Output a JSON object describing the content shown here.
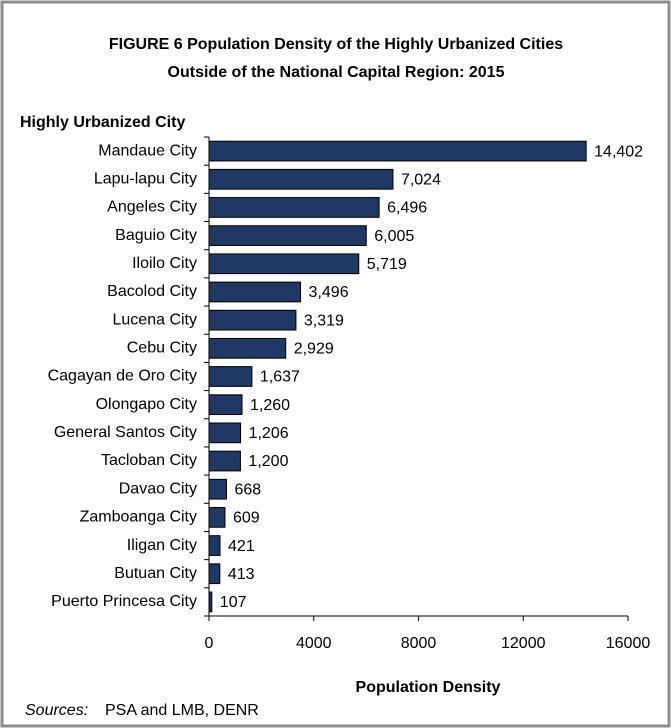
{
  "chart_data": {
    "type": "bar",
    "orientation": "horizontal",
    "title": "FIGURE 6  Population Density of the Highly Urbanized Cities",
    "subtitle": "Outside of the National Capital Region:  2015",
    "y_axis_label": "Highly Urbanized City",
    "x_axis_label": "Population Density",
    "source_label": "Sources:",
    "source": "PSA and LMB, DENR",
    "categories": [
      "Mandaue City",
      "Lapu-lapu City",
      "Angeles City",
      "Baguio City",
      "Iloilo City",
      "Bacolod City",
      "Lucena City",
      "Cebu City",
      "Cagayan de Oro City",
      "Olongapo City",
      "General Santos City",
      "Tacloban City",
      "Davao City",
      "Zamboanga City",
      "Iligan City",
      "Butuan City",
      "Puerto Princesa City"
    ],
    "values": [
      14402,
      7024,
      6496,
      6005,
      5719,
      3496,
      3319,
      2929,
      1637,
      1260,
      1206,
      1200,
      668,
      609,
      421,
      413,
      107
    ],
    "value_labels": [
      "14,402",
      "7,024",
      "6,496",
      "6,005",
      "5,719",
      "3,496",
      "3,319",
      "2,929",
      "1,637",
      "1,260",
      "1,206",
      "1,200",
      "668",
      "609",
      "421",
      "413",
      "107"
    ],
    "color": "#1f3864",
    "xlim": [
      0,
      16000
    ],
    "xticks": [
      0,
      4000,
      8000,
      12000,
      16000
    ],
    "grid": false
  }
}
